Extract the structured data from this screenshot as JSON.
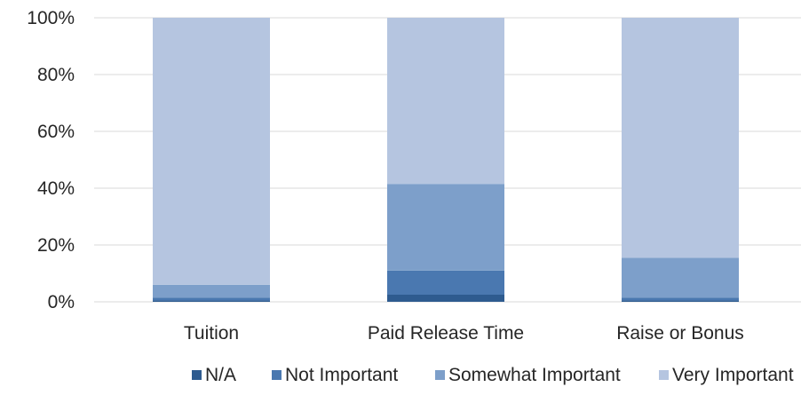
{
  "chart_data": {
    "type": "bar",
    "stacked": true,
    "percent": true,
    "categories": [
      "Tuition",
      "Paid Release Time",
      "Raise or Bonus"
    ],
    "series": [
      {
        "name": "N/A",
        "color": "#2E5B8F",
        "values": [
          0.5,
          2.5,
          0.5
        ]
      },
      {
        "name": "Not Important",
        "color": "#4A78B0",
        "values": [
          1.0,
          8.5,
          1.0
        ]
      },
      {
        "name": "Somewhat Important",
        "color": "#7D9FCA",
        "values": [
          4.5,
          30.5,
          14.0
        ]
      },
      {
        "name": "Very Important",
        "color": "#B5C5E0",
        "values": [
          94.0,
          58.5,
          84.5
        ]
      }
    ],
    "ylim": [
      0,
      100
    ],
    "y_ticks": [
      "0%",
      "20%",
      "40%",
      "60%",
      "80%",
      "100%"
    ],
    "y_tick_values": [
      0,
      20,
      40,
      60,
      80,
      100
    ],
    "grid": true,
    "legend_placement": "bottom"
  }
}
